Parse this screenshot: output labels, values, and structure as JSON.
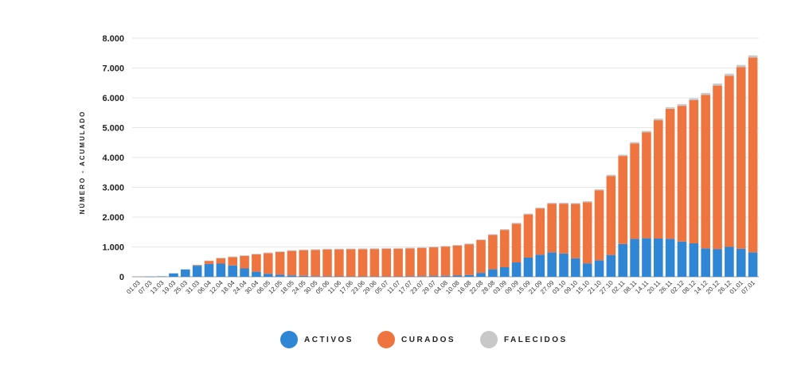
{
  "chart_data": {
    "type": "bar",
    "stacked": true,
    "ylabel": "NÚMERO - ACUMULADO",
    "ylim": [
      0,
      8000
    ],
    "yticks": [
      "0",
      "1.000",
      "2.000",
      "3.000",
      "4.000",
      "5.000",
      "6.000",
      "7.000",
      "8.000"
    ],
    "grid": true,
    "legend_position": "bottom-center",
    "categories": [
      "01.03",
      "07.03",
      "13.03",
      "19.03",
      "25.03",
      "31.03",
      "06.04",
      "12.04",
      "18.04",
      "24.04",
      "30.04",
      "06.05",
      "12.05",
      "18.05",
      "24.05",
      "30.05",
      "05.06",
      "11.06",
      "17.06",
      "23.06",
      "29.06",
      "05.07",
      "11.07",
      "17.07",
      "23.07",
      "29.07",
      "04.08",
      "10.08",
      "16.08",
      "22.08",
      "28.08",
      "03.09",
      "09.09",
      "15.09",
      "21.09",
      "27.09",
      "03.10",
      "09.10",
      "15.10",
      "21.10",
      "27.10",
      "02.11",
      "08.11",
      "14.11",
      "20.11",
      "26.11",
      "02.12",
      "08.12",
      "14.12",
      "20.12",
      "26.12",
      "01.01",
      "07.01"
    ],
    "series": [
      {
        "name": "ACTIVOS",
        "color": "#2f86d4",
        "values": [
          0,
          5,
          15,
          120,
          250,
          370,
          430,
          440,
          380,
          280,
          170,
          100,
          70,
          45,
          30,
          20,
          15,
          12,
          10,
          10,
          10,
          10,
          10,
          15,
          20,
          25,
          30,
          40,
          60,
          130,
          250,
          320,
          480,
          640,
          740,
          820,
          780,
          620,
          450,
          550,
          730,
          1100,
          1270,
          1290,
          1280,
          1270,
          1180,
          1120,
          950,
          930,
          1000,
          940,
          820
        ]
      },
      {
        "name": "CURADOS",
        "color": "#ee7440",
        "values": [
          0,
          0,
          0,
          0,
          0,
          20,
          100,
          180,
          280,
          420,
          580,
          690,
          760,
          820,
          860,
          880,
          900,
          905,
          910,
          915,
          920,
          925,
          930,
          935,
          945,
          960,
          980,
          1000,
          1030,
          1100,
          1150,
          1250,
          1300,
          1450,
          1550,
          1630,
          1670,
          1820,
          2050,
          2350,
          2650,
          2950,
          3200,
          3550,
          3970,
          4360,
          4550,
          4800,
          5150,
          5480,
          5740,
          6090,
          6530
        ]
      },
      {
        "name": "FALECIDOS",
        "color": "#c8c8c8",
        "values": [
          0,
          0,
          0,
          2,
          5,
          10,
          15,
          18,
          20,
          22,
          23,
          24,
          24,
          25,
          25,
          25,
          25,
          25,
          25,
          25,
          25,
          25,
          25,
          25,
          25,
          25,
          25,
          26,
          26,
          26,
          27,
          27,
          28,
          29,
          30,
          31,
          32,
          33,
          35,
          37,
          40,
          43,
          46,
          50,
          53,
          56,
          59,
          62,
          65,
          67,
          69,
          71,
          73
        ]
      }
    ]
  },
  "legend": {
    "activos": {
      "label": "ACTIVOS",
      "color": "#2f86d4"
    },
    "curados": {
      "label": "CURADOS",
      "color": "#ee7440"
    },
    "falecidos": {
      "label": "FALECIDOS",
      "color": "#c8c8c8"
    }
  }
}
